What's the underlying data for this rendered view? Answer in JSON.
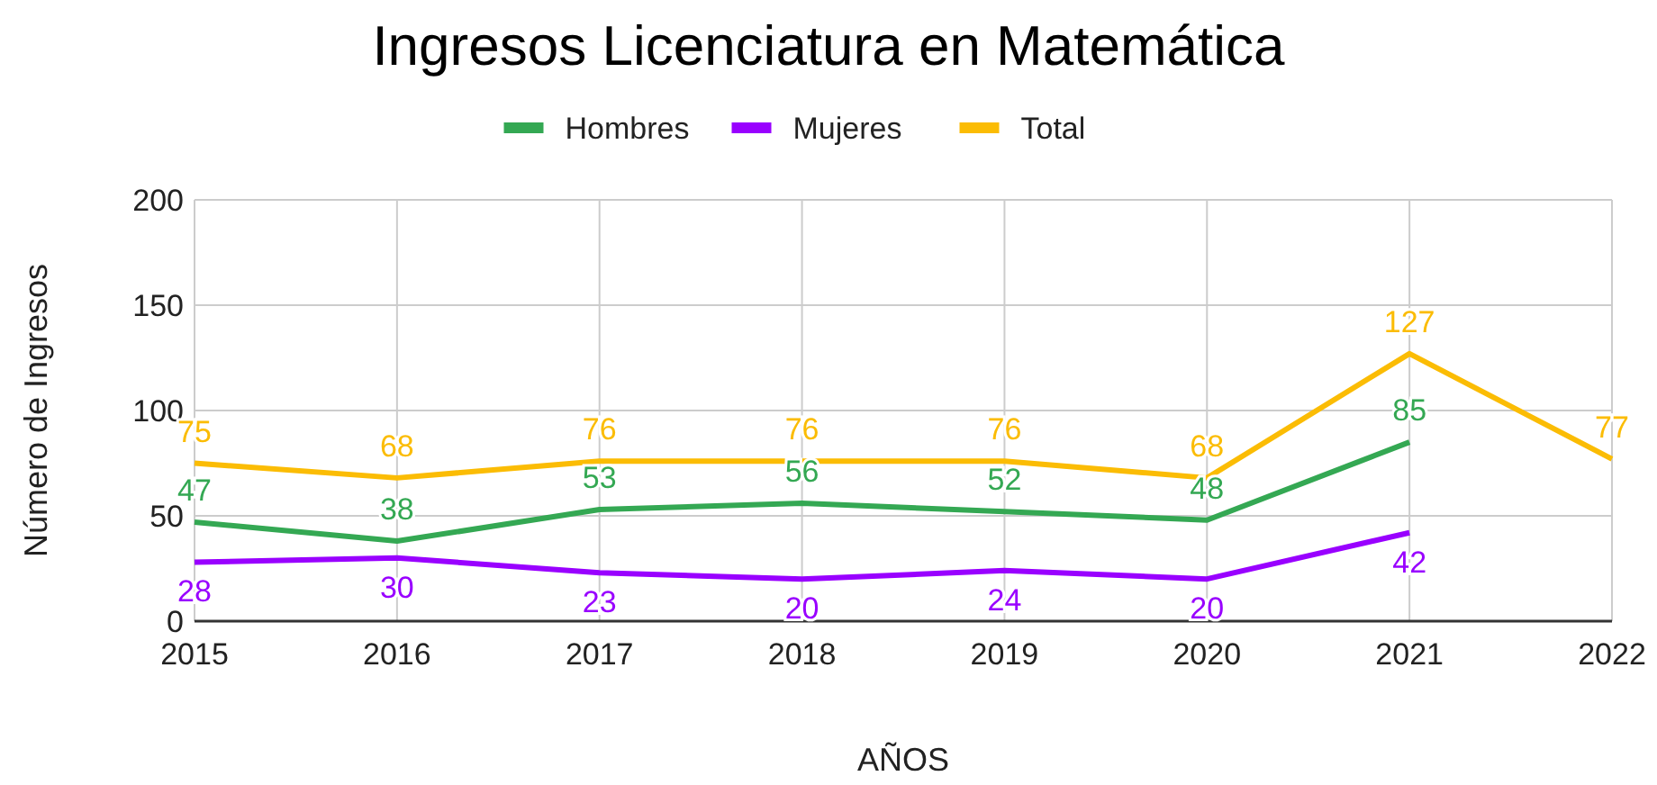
{
  "chart_data": {
    "type": "line",
    "title": "Ingresos Licenciatura en Matemática",
    "xlabel": "AÑOS",
    "ylabel": "Número de Ingresos",
    "categories": [
      "2015",
      "2016",
      "2017",
      "2018",
      "2019",
      "2020",
      "2021",
      "2022"
    ],
    "series": [
      {
        "name": "Hombres",
        "color": "#34a853",
        "values": [
          47,
          38,
          53,
          56,
          52,
          48,
          85,
          null
        ]
      },
      {
        "name": "Mujeres",
        "color": "#9900ff",
        "values": [
          28,
          30,
          23,
          20,
          24,
          20,
          42,
          null
        ]
      },
      {
        "name": "Total",
        "color": "#fbbc04",
        "values": [
          75,
          68,
          76,
          76,
          76,
          68,
          127,
          77
        ]
      }
    ],
    "ylim": [
      0,
      200
    ],
    "yticks": [
      0,
      50,
      100,
      150,
      200
    ],
    "grid": true,
    "legend": "top",
    "data_labels": true,
    "marker": "none",
    "line_style": "solid"
  }
}
